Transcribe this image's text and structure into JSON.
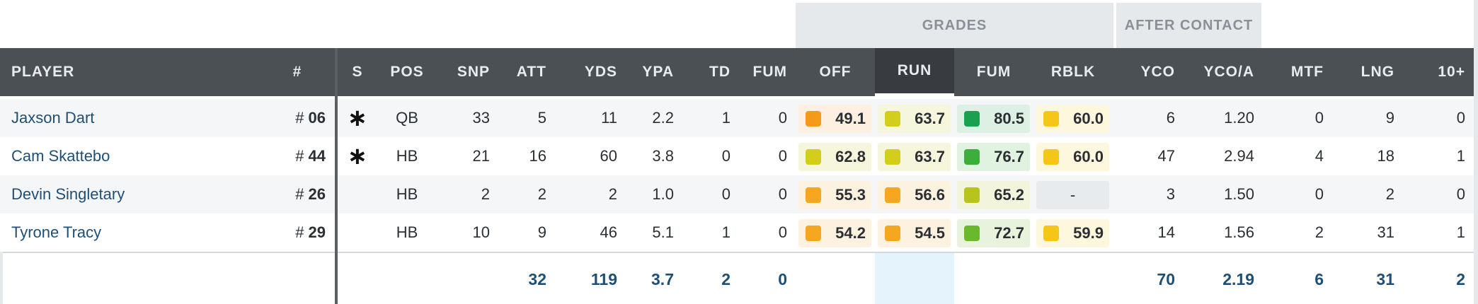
{
  "groups": {
    "grades": "GRADES",
    "after_contact": "AFTER CONTACT"
  },
  "headers": {
    "player": "PLAYER",
    "num": "#",
    "s": "S",
    "pos": "POS",
    "snp": "SNP",
    "att": "ATT",
    "yds": "YDS",
    "ypa": "YPA",
    "td": "TD",
    "fum": "FUM",
    "off": "OFF",
    "run": "RUN",
    "fum_grade": "FUM",
    "rblk": "RBLK",
    "yco": "YCO",
    "yco_a": "YCO/A",
    "mtf": "MTF",
    "lng": "LNG",
    "ten_plus": "10+"
  },
  "rows": [
    {
      "name": "Jaxson Dart",
      "jersey_prefix": "#",
      "jersey": "06",
      "starter": "∗",
      "pos": "QB",
      "snp": "33",
      "att": "5",
      "yds": "11",
      "ypa": "2.2",
      "td": "1",
      "fum": "0",
      "off": "49.1",
      "run": "63.7",
      "fum_grade": "80.5",
      "rblk": "60.0",
      "yco": "6",
      "yco_a": "1.20",
      "mtf": "0",
      "lng": "9",
      "ten_plus": "0"
    },
    {
      "name": "Cam Skattebo",
      "jersey_prefix": "#",
      "jersey": "44",
      "starter": "∗",
      "pos": "HB",
      "snp": "21",
      "att": "16",
      "yds": "60",
      "ypa": "3.8",
      "td": "0",
      "fum": "0",
      "off": "62.8",
      "run": "63.7",
      "fum_grade": "76.7",
      "rblk": "60.0",
      "yco": "47",
      "yco_a": "2.94",
      "mtf": "4",
      "lng": "18",
      "ten_plus": "1"
    },
    {
      "name": "Devin Singletary",
      "jersey_prefix": "#",
      "jersey": "26",
      "starter": "",
      "pos": "HB",
      "snp": "2",
      "att": "2",
      "yds": "2",
      "ypa": "1.0",
      "td": "0",
      "fum": "0",
      "off": "55.3",
      "run": "56.6",
      "fum_grade": "65.2",
      "rblk": "-",
      "yco": "3",
      "yco_a": "1.50",
      "mtf": "0",
      "lng": "2",
      "ten_plus": "0"
    },
    {
      "name": "Tyrone Tracy",
      "jersey_prefix": "#",
      "jersey": "29",
      "starter": "",
      "pos": "HB",
      "snp": "10",
      "att": "9",
      "yds": "46",
      "ypa": "5.1",
      "td": "1",
      "fum": "0",
      "off": "54.2",
      "run": "54.5",
      "fum_grade": "72.7",
      "rblk": "59.9",
      "yco": "14",
      "yco_a": "1.56",
      "mtf": "2",
      "lng": "31",
      "ten_plus": "1"
    }
  ],
  "grade_colors": {
    "0": {
      "off": [
        "#f39a1b",
        "#fdf0e1"
      ],
      "run": [
        "#d3cd1e",
        "#f6f6dc"
      ],
      "fum_grade": [
        "#1aa04f",
        "#dcf0e4"
      ],
      "rblk": [
        "#f5c518",
        "#fdf7dd"
      ]
    },
    "1": {
      "off": [
        "#d3cd1e",
        "#f6f6dc"
      ],
      "run": [
        "#d3cd1e",
        "#f6f6dc"
      ],
      "fum_grade": [
        "#3cae3a",
        "#e0f2e0"
      ],
      "rblk": [
        "#f5c518",
        "#fdf7dd"
      ]
    },
    "2": {
      "off": [
        "#f5a81f",
        "#fdf2e0"
      ],
      "run": [
        "#f5a81f",
        "#fdf2e0"
      ],
      "fum_grade": [
        "#b8c41c",
        "#f2f4dc"
      ],
      "rblk": null
    },
    "3": {
      "off": [
        "#f5a81f",
        "#fdf2e0"
      ],
      "run": [
        "#f5a81f",
        "#fdf2e0"
      ],
      "fum_grade": [
        "#6ab82b",
        "#e7f3dd"
      ],
      "rblk": [
        "#f5c518",
        "#fdf7dd"
      ]
    }
  },
  "totals": {
    "att": "32",
    "yds": "119",
    "ypa": "3.7",
    "td": "2",
    "fum": "0",
    "yco": "70",
    "yco_a": "2.19",
    "mtf": "6",
    "lng": "31",
    "ten_plus": "2"
  }
}
